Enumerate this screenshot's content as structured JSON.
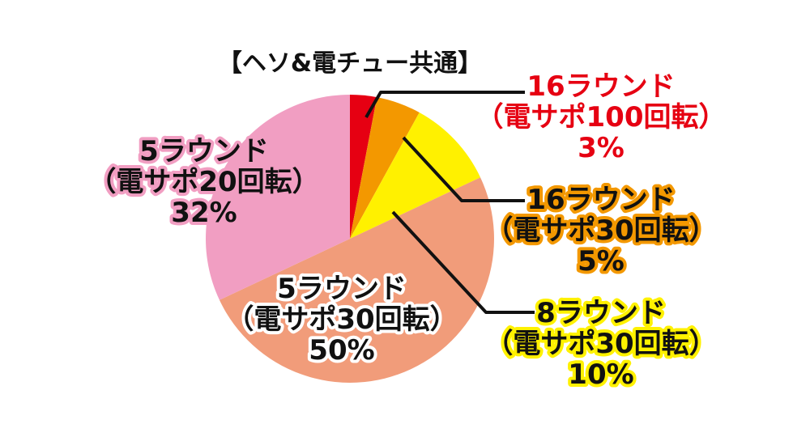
{
  "chart_data": {
    "type": "pie",
    "title": "【ヘソ&電チュー共通】",
    "start_angle_deg": 0,
    "direction": "clockwise",
    "slices": [
      {
        "name": "16ラウンド（電サポ100回転）",
        "lines": [
          "16ラウンド",
          "（電サポ100回転）",
          "3%"
        ],
        "value": 3,
        "color": "#e60012",
        "label_text_color": "#e60012",
        "label_outline_color": "#ffffff"
      },
      {
        "name": "16ラウンド（電サポ30回転）",
        "lines": [
          "16ラウンド",
          "（電サポ30回転）",
          "5%"
        ],
        "value": 5,
        "color": "#f39800",
        "label_text_color": "#111111",
        "label_outline_color": "#f39800"
      },
      {
        "name": "8ラウンド（電サポ30回転）",
        "lines": [
          "8ラウンド",
          "（電サポ30回転）",
          "10%"
        ],
        "value": 10,
        "color": "#fff100",
        "label_text_color": "#111111",
        "label_outline_color": "#fff100"
      },
      {
        "name": "5ラウンド（電サポ30回転）",
        "lines": [
          "5ラウンド",
          "（電サポ30回転）",
          "50%"
        ],
        "value": 50,
        "color": "#f19c7a",
        "label_text_color": "#111111",
        "label_outline_color": "#ffffff"
      },
      {
        "name": "5ラウンド（電サポ20回転）",
        "lines": [
          "5ラウンド",
          "（電サポ20回転）",
          "32%"
        ],
        "value": 32,
        "color": "#f19ec2",
        "label_text_color": "#111111",
        "label_outline_color": "#f19ec2"
      }
    ]
  }
}
